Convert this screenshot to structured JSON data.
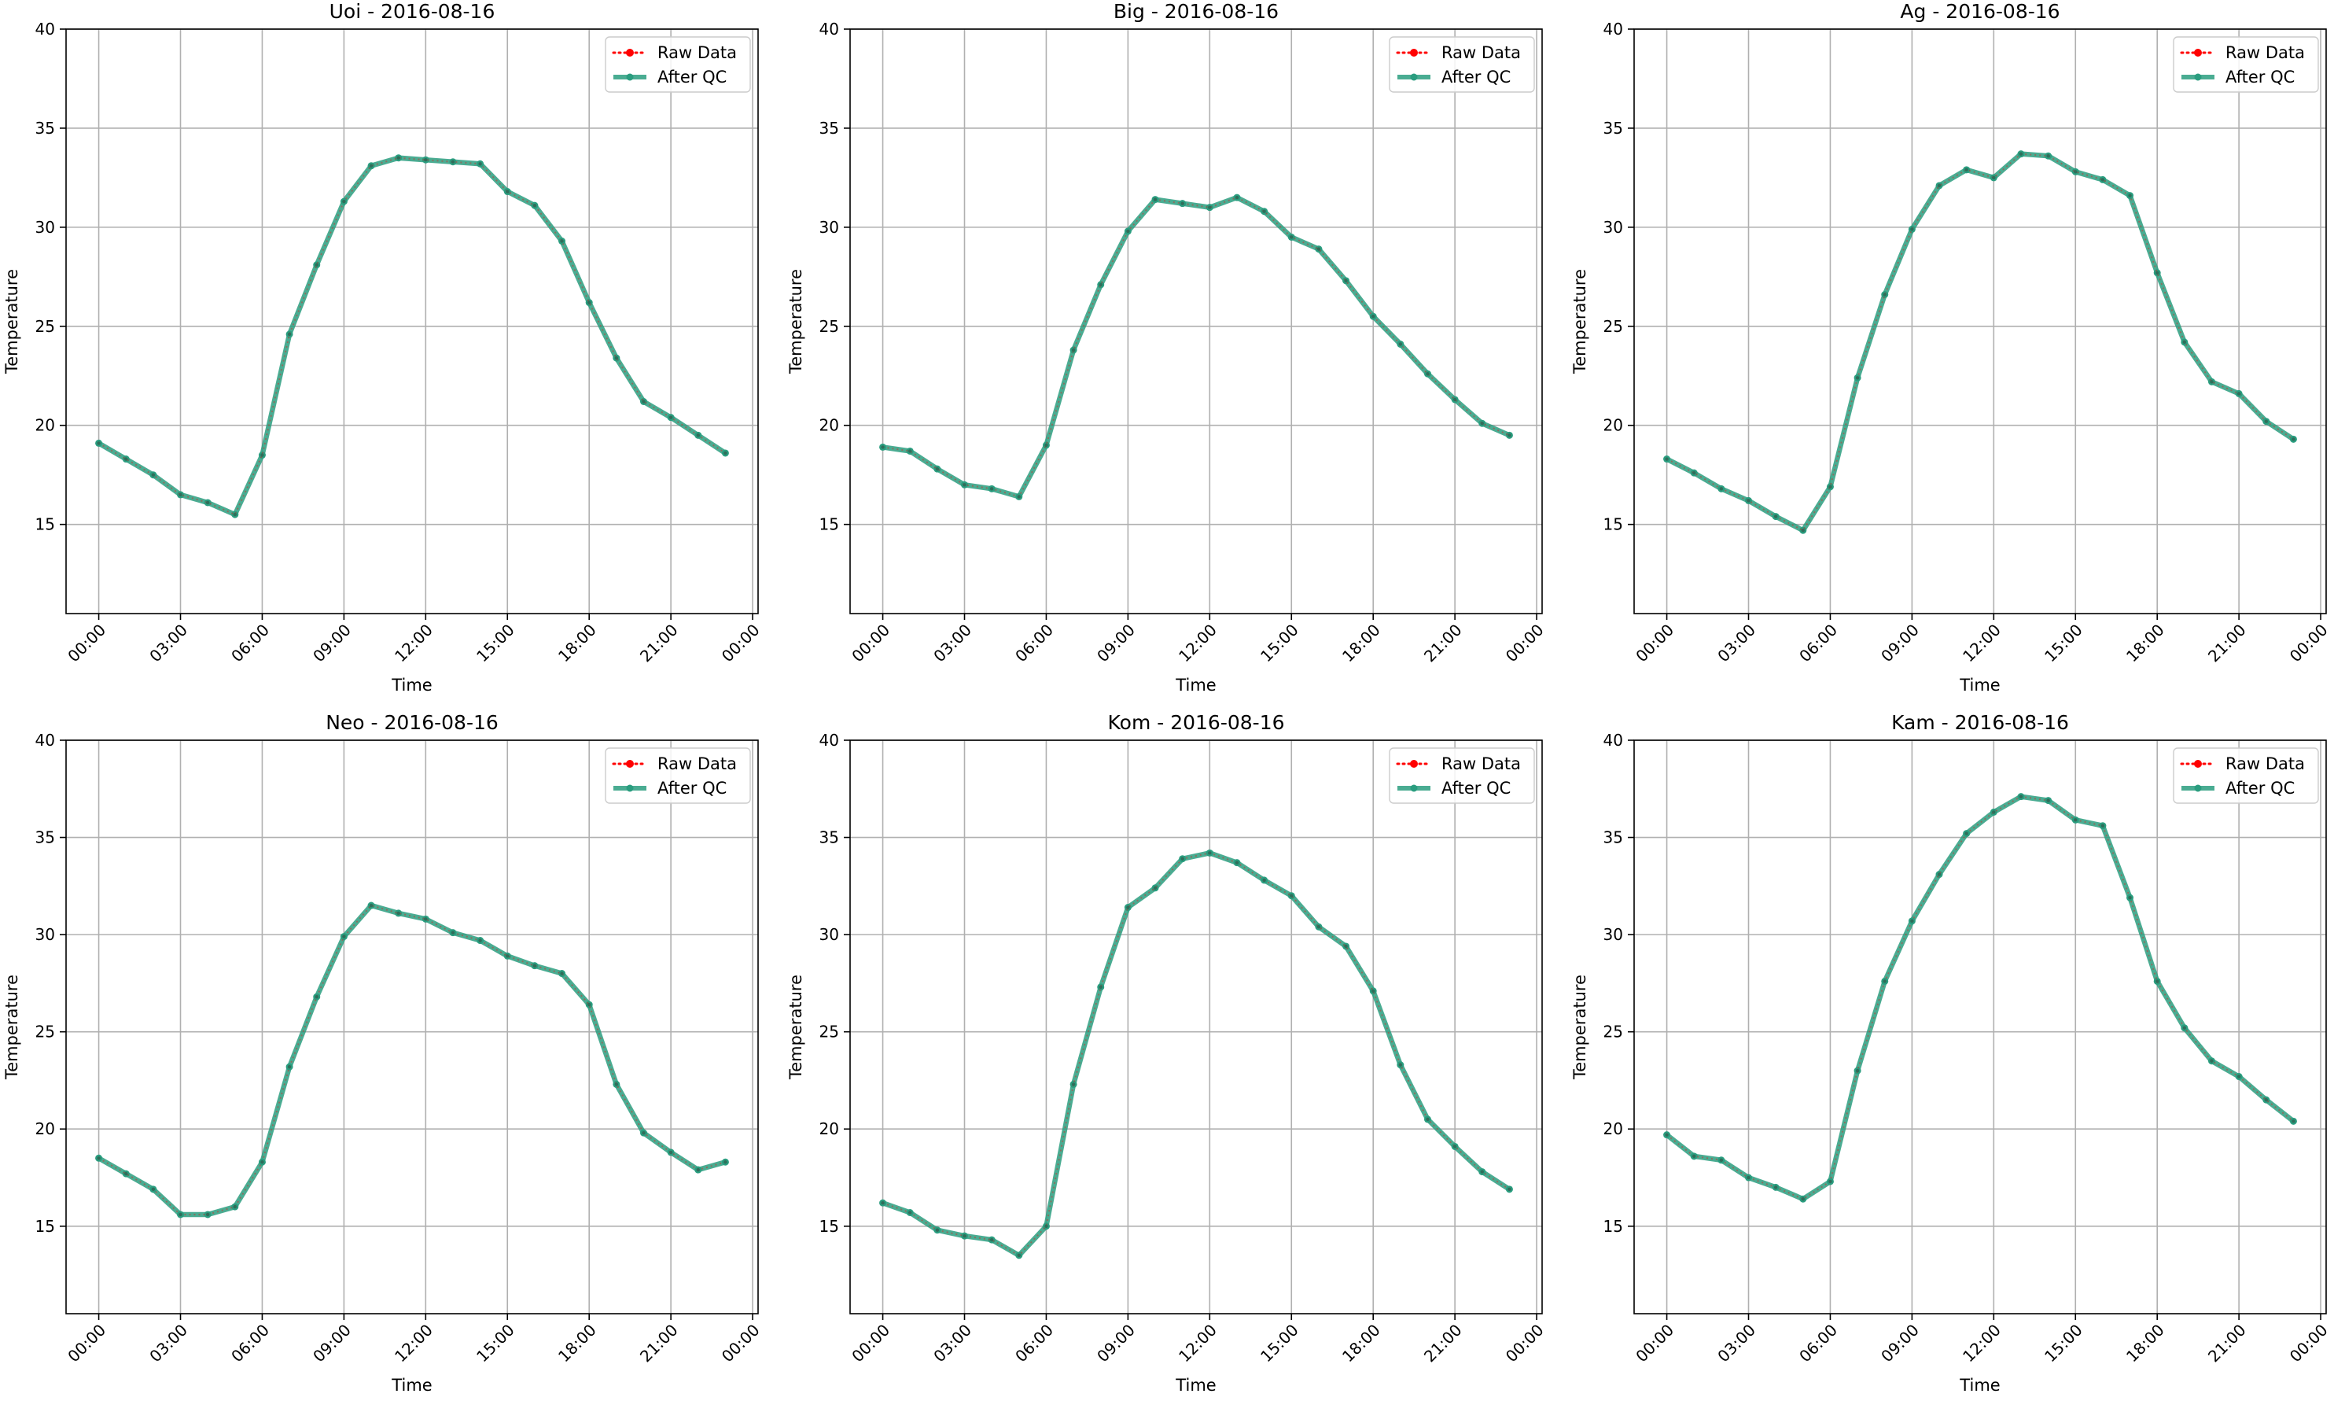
{
  "chart_data": [
    {
      "type": "line",
      "title": "Uoi - 2016-08-16",
      "xlabel": "Time",
      "ylabel": "Temperature",
      "x": [
        "00:00",
        "01:00",
        "02:00",
        "03:00",
        "04:00",
        "05:00",
        "06:00",
        "07:00",
        "08:00",
        "09:00",
        "10:00",
        "11:00",
        "12:00",
        "13:00",
        "14:00",
        "15:00",
        "16:00",
        "17:00",
        "18:00",
        "19:00",
        "20:00",
        "21:00",
        "22:00",
        "23:00"
      ],
      "xticks": [
        "00:00",
        "03:00",
        "06:00",
        "09:00",
        "12:00",
        "15:00",
        "18:00",
        "21:00",
        "00:00"
      ],
      "yticks": [
        15,
        20,
        25,
        30,
        35,
        40
      ],
      "ylim": [
        10.5,
        40
      ],
      "xlim_hours": [
        -1.2,
        24.2
      ],
      "grid": true,
      "legend_position": "upper right",
      "series": [
        {
          "name": "Raw Data",
          "color": "#ff0000",
          "style": "dotted",
          "values": [
            19.1,
            18.3,
            17.5,
            16.5,
            16.1,
            15.5,
            18.5,
            24.6,
            28.1,
            31.3,
            33.1,
            33.5,
            33.4,
            33.3,
            33.2,
            31.8,
            31.1,
            29.3,
            26.2,
            23.4,
            21.2,
            20.4,
            19.5,
            18.6
          ]
        },
        {
          "name": "After QC",
          "color": "#2a9d7f",
          "style": "solid",
          "values": [
            19.1,
            18.3,
            17.5,
            16.5,
            16.1,
            15.5,
            18.5,
            24.6,
            28.1,
            31.3,
            33.1,
            33.5,
            33.4,
            33.3,
            33.2,
            31.8,
            31.1,
            29.3,
            26.2,
            23.4,
            21.2,
            20.4,
            19.5,
            18.6
          ]
        }
      ]
    },
    {
      "type": "line",
      "title": "Big - 2016-08-16",
      "xlabel": "Time",
      "ylabel": "Temperature",
      "x": [
        "00:00",
        "01:00",
        "02:00",
        "03:00",
        "04:00",
        "05:00",
        "06:00",
        "07:00",
        "08:00",
        "09:00",
        "10:00",
        "11:00",
        "12:00",
        "13:00",
        "14:00",
        "15:00",
        "16:00",
        "17:00",
        "18:00",
        "19:00",
        "20:00",
        "21:00",
        "22:00",
        "23:00"
      ],
      "xticks": [
        "00:00",
        "03:00",
        "06:00",
        "09:00",
        "12:00",
        "15:00",
        "18:00",
        "21:00",
        "00:00"
      ],
      "yticks": [
        15,
        20,
        25,
        30,
        35,
        40
      ],
      "ylim": [
        10.5,
        40
      ],
      "xlim_hours": [
        -1.2,
        24.2
      ],
      "grid": true,
      "legend_position": "upper right",
      "series": [
        {
          "name": "Raw Data",
          "color": "#ff0000",
          "style": "dotted",
          "values": [
            18.9,
            18.7,
            17.8,
            17.0,
            16.8,
            16.4,
            19.0,
            23.8,
            27.1,
            29.8,
            31.4,
            31.2,
            31.0,
            31.5,
            30.8,
            29.5,
            28.9,
            27.3,
            25.5,
            24.1,
            22.6,
            21.3,
            20.1,
            19.5
          ]
        },
        {
          "name": "After QC",
          "color": "#2a9d7f",
          "style": "solid",
          "values": [
            18.9,
            18.7,
            17.8,
            17.0,
            16.8,
            16.4,
            19.0,
            23.8,
            27.1,
            29.8,
            31.4,
            31.2,
            31.0,
            31.5,
            30.8,
            29.5,
            28.9,
            27.3,
            25.5,
            24.1,
            22.6,
            21.3,
            20.1,
            19.5
          ]
        }
      ]
    },
    {
      "type": "line",
      "title": "Ag - 2016-08-16",
      "xlabel": "Time",
      "ylabel": "Temperature",
      "x": [
        "00:00",
        "01:00",
        "02:00",
        "03:00",
        "04:00",
        "05:00",
        "06:00",
        "07:00",
        "08:00",
        "09:00",
        "10:00",
        "11:00",
        "12:00",
        "13:00",
        "14:00",
        "15:00",
        "16:00",
        "17:00",
        "18:00",
        "19:00",
        "20:00",
        "21:00",
        "22:00",
        "23:00"
      ],
      "xticks": [
        "00:00",
        "03:00",
        "06:00",
        "09:00",
        "12:00",
        "15:00",
        "18:00",
        "21:00",
        "00:00"
      ],
      "yticks": [
        15,
        20,
        25,
        30,
        35,
        40
      ],
      "ylim": [
        10.5,
        40
      ],
      "xlim_hours": [
        -1.2,
        24.2
      ],
      "grid": true,
      "legend_position": "upper right",
      "series": [
        {
          "name": "Raw Data",
          "color": "#ff0000",
          "style": "dotted",
          "values": [
            18.3,
            17.6,
            16.8,
            16.2,
            15.4,
            14.7,
            16.9,
            22.4,
            26.6,
            29.9,
            32.1,
            32.9,
            32.5,
            33.7,
            33.6,
            32.8,
            32.4,
            31.6,
            27.7,
            24.2,
            22.2,
            21.6,
            20.2,
            19.3
          ]
        },
        {
          "name": "After QC",
          "color": "#2a9d7f",
          "style": "solid",
          "values": [
            18.3,
            17.6,
            16.8,
            16.2,
            15.4,
            14.7,
            16.9,
            22.4,
            26.6,
            29.9,
            32.1,
            32.9,
            32.5,
            33.7,
            33.6,
            32.8,
            32.4,
            31.6,
            27.7,
            24.2,
            22.2,
            21.6,
            20.2,
            19.3
          ]
        }
      ]
    },
    {
      "type": "line",
      "title": "Neo - 2016-08-16",
      "xlabel": "Time",
      "ylabel": "Temperature",
      "x": [
        "00:00",
        "01:00",
        "02:00",
        "03:00",
        "04:00",
        "05:00",
        "06:00",
        "07:00",
        "08:00",
        "09:00",
        "10:00",
        "11:00",
        "12:00",
        "13:00",
        "14:00",
        "15:00",
        "16:00",
        "17:00",
        "18:00",
        "19:00",
        "20:00",
        "21:00",
        "22:00",
        "23:00"
      ],
      "xticks": [
        "00:00",
        "03:00",
        "06:00",
        "09:00",
        "12:00",
        "15:00",
        "18:00",
        "21:00",
        "00:00"
      ],
      "yticks": [
        15,
        20,
        25,
        30,
        35,
        40
      ],
      "ylim": [
        10.5,
        40
      ],
      "xlim_hours": [
        -1.2,
        24.2
      ],
      "grid": true,
      "legend_position": "upper right",
      "series": [
        {
          "name": "Raw Data",
          "color": "#ff0000",
          "style": "dotted",
          "values": [
            18.5,
            17.7,
            16.9,
            15.6,
            15.6,
            16.0,
            18.3,
            23.2,
            26.8,
            29.9,
            31.5,
            31.1,
            30.8,
            30.1,
            29.7,
            28.9,
            28.4,
            28.0,
            26.4,
            22.3,
            19.8,
            18.8,
            17.9,
            18.3
          ]
        },
        {
          "name": "After QC",
          "color": "#2a9d7f",
          "style": "solid",
          "values": [
            18.5,
            17.7,
            16.9,
            15.6,
            15.6,
            16.0,
            18.3,
            23.2,
            26.8,
            29.9,
            31.5,
            31.1,
            30.8,
            30.1,
            29.7,
            28.9,
            28.4,
            28.0,
            26.4,
            22.3,
            19.8,
            18.8,
            17.9,
            18.3
          ]
        }
      ]
    },
    {
      "type": "line",
      "title": "Kom - 2016-08-16",
      "xlabel": "Time",
      "ylabel": "Temperature",
      "x": [
        "00:00",
        "01:00",
        "02:00",
        "03:00",
        "04:00",
        "05:00",
        "06:00",
        "07:00",
        "08:00",
        "09:00",
        "10:00",
        "11:00",
        "12:00",
        "13:00",
        "14:00",
        "15:00",
        "16:00",
        "17:00",
        "18:00",
        "19:00",
        "20:00",
        "21:00",
        "22:00",
        "23:00"
      ],
      "xticks": [
        "00:00",
        "03:00",
        "06:00",
        "09:00",
        "12:00",
        "15:00",
        "18:00",
        "21:00",
        "00:00"
      ],
      "yticks": [
        15,
        20,
        25,
        30,
        35,
        40
      ],
      "ylim": [
        10.5,
        40
      ],
      "xlim_hours": [
        -1.2,
        24.2
      ],
      "grid": true,
      "legend_position": "upper right",
      "series": [
        {
          "name": "Raw Data",
          "color": "#ff0000",
          "style": "dotted",
          "values": [
            16.2,
            15.7,
            14.8,
            14.5,
            14.3,
            13.5,
            15.0,
            22.3,
            27.3,
            31.4,
            32.4,
            33.9,
            34.2,
            33.7,
            32.8,
            32.0,
            30.4,
            29.4,
            27.1,
            23.3,
            20.5,
            19.1,
            17.8,
            16.9
          ]
        },
        {
          "name": "After QC",
          "color": "#2a9d7f",
          "style": "solid",
          "values": [
            16.2,
            15.7,
            14.8,
            14.5,
            14.3,
            13.5,
            15.0,
            22.3,
            27.3,
            31.4,
            32.4,
            33.9,
            34.2,
            33.7,
            32.8,
            32.0,
            30.4,
            29.4,
            27.1,
            23.3,
            20.5,
            19.1,
            17.8,
            16.9
          ]
        }
      ]
    },
    {
      "type": "line",
      "title": "Kam - 2016-08-16",
      "xlabel": "Time",
      "ylabel": "Temperature",
      "x": [
        "00:00",
        "01:00",
        "02:00",
        "03:00",
        "04:00",
        "05:00",
        "06:00",
        "07:00",
        "08:00",
        "09:00",
        "10:00",
        "11:00",
        "12:00",
        "13:00",
        "14:00",
        "15:00",
        "16:00",
        "17:00",
        "18:00",
        "19:00",
        "20:00",
        "21:00",
        "22:00",
        "23:00"
      ],
      "xticks": [
        "00:00",
        "03:00",
        "06:00",
        "09:00",
        "12:00",
        "15:00",
        "18:00",
        "21:00",
        "00:00"
      ],
      "yticks": [
        15,
        20,
        25,
        30,
        35,
        40
      ],
      "ylim": [
        10.5,
        40
      ],
      "xlim_hours": [
        -1.2,
        24.2
      ],
      "grid": true,
      "legend_position": "upper right",
      "series": [
        {
          "name": "Raw Data",
          "color": "#ff0000",
          "style": "dotted",
          "values": [
            19.7,
            18.6,
            18.4,
            17.5,
            17.0,
            16.4,
            17.3,
            23.0,
            27.6,
            30.7,
            33.1,
            35.2,
            36.3,
            37.1,
            36.9,
            35.9,
            35.6,
            31.9,
            27.6,
            25.2,
            23.5,
            22.7,
            21.5,
            20.4
          ]
        },
        {
          "name": "After QC",
          "color": "#2a9d7f",
          "style": "solid",
          "values": [
            19.7,
            18.6,
            18.4,
            17.5,
            17.0,
            16.4,
            17.3,
            23.0,
            27.6,
            30.7,
            33.1,
            35.2,
            36.3,
            37.1,
            36.9,
            35.9,
            35.6,
            31.9,
            27.6,
            25.2,
            23.5,
            22.7,
            21.5,
            20.4
          ]
        }
      ]
    }
  ]
}
